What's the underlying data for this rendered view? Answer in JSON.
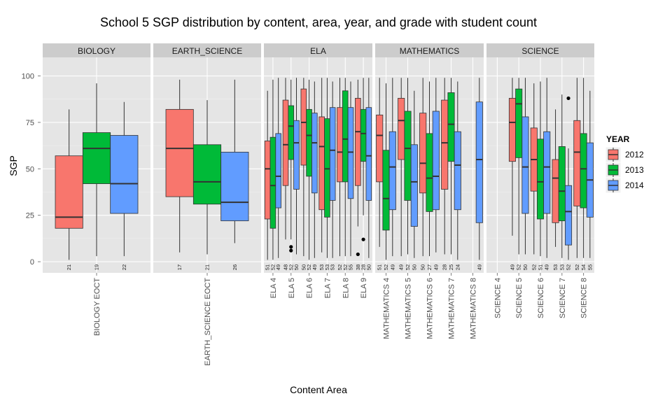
{
  "title": "School 5 SGP distribution by content, area, year, and grade with student count",
  "chart_data": {
    "type": "box",
    "title": "School 5 SGP distribution by content, area, year, and grade with student count",
    "xlabel": "Content Area",
    "ylabel": "SGP",
    "ylim": [
      -6,
      110
    ],
    "yticks": [
      0,
      25,
      50,
      75,
      100
    ],
    "grid": true,
    "legend": {
      "title": "YEAR",
      "position": "right",
      "entries": [
        {
          "label": "2012",
          "color": "#F8766D"
        },
        {
          "label": "2013",
          "color": "#00BA38"
        },
        {
          "label": "2014",
          "color": "#619CFF"
        }
      ]
    },
    "facets": [
      {
        "name": "BIOLOGY",
        "categories": [
          "BIOLOGY EOCT"
        ],
        "boxes": [
          {
            "cat": "BIOLOGY EOCT",
            "year": "2012",
            "min": 1,
            "q1": 18,
            "median": 24,
            "q3": 57,
            "max": 82,
            "n": "21",
            "outliers": []
          },
          {
            "cat": "BIOLOGY EOCT",
            "year": "2013",
            "min": 3,
            "q1": 42,
            "median": 61,
            "q3": 69.5,
            "max": 96,
            "n": "19",
            "outliers": []
          },
          {
            "cat": "BIOLOGY EOCT",
            "year": "2014",
            "min": 3,
            "q1": 26,
            "median": 42,
            "q3": 68,
            "max": 86,
            "n": "22",
            "outliers": []
          }
        ]
      },
      {
        "name": "EARTH_SCIENCE",
        "categories": [
          "EARTH_SCIENCE EOCT"
        ],
        "boxes": [
          {
            "cat": "EARTH_SCIENCE EOCT",
            "year": "2012",
            "min": 5,
            "q1": 35,
            "median": 61,
            "q3": 82,
            "max": 98,
            "n": "17",
            "outliers": []
          },
          {
            "cat": "EARTH_SCIENCE EOCT",
            "year": "2013",
            "min": 4,
            "q1": 31,
            "median": 43,
            "q3": 63,
            "max": 87,
            "n": "21",
            "outliers": []
          },
          {
            "cat": "EARTH_SCIENCE EOCT",
            "year": "2014",
            "min": 10,
            "q1": 22,
            "median": 32,
            "q3": 59,
            "max": 98,
            "n": "26",
            "outliers": []
          }
        ]
      },
      {
        "name": "ELA",
        "categories": [
          "ELA 4",
          "ELA 5",
          "ELA 6",
          "ELA 7",
          "ELA 8",
          "ELA 9"
        ],
        "boxes": [
          {
            "cat": "ELA 4",
            "year": "2012",
            "min": 1,
            "q1": 23,
            "median": 50,
            "q3": 65,
            "max": 92,
            "n": "51",
            "outliers": []
          },
          {
            "cat": "ELA 4",
            "year": "2013",
            "min": 1,
            "q1": 18,
            "median": 41,
            "q3": 67,
            "max": 98,
            "n": "52",
            "outliers": []
          },
          {
            "cat": "ELA 4",
            "year": "2014",
            "min": 2,
            "q1": 29,
            "median": 46,
            "q3": 69,
            "max": 99,
            "n": "49",
            "outliers": []
          },
          {
            "cat": "ELA 5",
            "year": "2012",
            "min": 12,
            "q1": 41,
            "median": 63,
            "q3": 87,
            "max": 99,
            "n": "48",
            "outliers": []
          },
          {
            "cat": "ELA 5",
            "year": "2013",
            "min": 12,
            "q1": 55,
            "median": 73,
            "q3": 84,
            "max": 98,
            "n": "52",
            "outliers": [
              6,
              8
            ]
          },
          {
            "cat": "ELA 5",
            "year": "2014",
            "min": 4,
            "q1": 39,
            "median": 64,
            "q3": 76,
            "max": 99,
            "n": "50",
            "outliers": []
          },
          {
            "cat": "ELA 6",
            "year": "2012",
            "min": 3,
            "q1": 52,
            "median": 75,
            "q3": 93,
            "max": 99,
            "n": "50",
            "outliers": []
          },
          {
            "cat": "ELA 6",
            "year": "2013",
            "min": 1,
            "q1": 46,
            "median": 68,
            "q3": 82,
            "max": 98,
            "n": "52",
            "outliers": []
          },
          {
            "cat": "ELA 6",
            "year": "2014",
            "min": 2,
            "q1": 37,
            "median": 64,
            "q3": 80,
            "max": 97,
            "n": "49",
            "outliers": []
          },
          {
            "cat": "ELA 7",
            "year": "2012",
            "min": 5,
            "q1": 28,
            "median": 62,
            "q3": 78,
            "max": 99,
            "n": "53",
            "outliers": []
          },
          {
            "cat": "ELA 7",
            "year": "2013",
            "min": 2,
            "q1": 24,
            "median": 50,
            "q3": 77,
            "max": 99,
            "n": "53",
            "outliers": []
          },
          {
            "cat": "ELA 7",
            "year": "2014",
            "min": 2,
            "q1": 33,
            "median": 60,
            "q3": 83,
            "max": 97,
            "n": "53",
            "outliers": []
          },
          {
            "cat": "ELA 8",
            "year": "2012",
            "min": 3,
            "q1": 43,
            "median": 59,
            "q3": 83,
            "max": 99,
            "n": "52",
            "outliers": []
          },
          {
            "cat": "ELA 8",
            "year": "2013",
            "min": 3,
            "q1": 43,
            "median": 66,
            "q3": 92,
            "max": 99,
            "n": "52",
            "outliers": []
          },
          {
            "cat": "ELA 8",
            "year": "2014",
            "min": 3,
            "q1": 34,
            "median": 59,
            "q3": 83,
            "max": 97,
            "n": "55",
            "outliers": []
          },
          {
            "cat": "ELA 9",
            "year": "2012",
            "min": 19,
            "q1": 41,
            "median": 70,
            "q3": 88,
            "max": 98,
            "n": "38",
            "outliers": [
              4
            ]
          },
          {
            "cat": "ELA 9",
            "year": "2013",
            "min": 25,
            "q1": 54,
            "median": 69,
            "q3": 82,
            "max": 99,
            "n": "28",
            "outliers": [
              12
            ]
          },
          {
            "cat": "ELA 9",
            "year": "2014",
            "min": 2,
            "q1": 33,
            "median": 57,
            "q3": 83,
            "max": 99,
            "n": "50",
            "outliers": []
          }
        ]
      },
      {
        "name": "MATHEMATICS",
        "categories": [
          "MATHEMATICS 4",
          "MATHEMATICS 5",
          "MATHEMATICS 6",
          "MATHEMATICS 7",
          "MATHEMATICS 8"
        ],
        "boxes": [
          {
            "cat": "MATHEMATICS 4",
            "year": "2012",
            "min": 8,
            "q1": 43,
            "median": 68,
            "q3": 79,
            "max": 99,
            "n": "51",
            "outliers": []
          },
          {
            "cat": "MATHEMATICS 4",
            "year": "2013",
            "min": 1,
            "q1": 17,
            "median": 34,
            "q3": 60,
            "max": 96,
            "n": "52",
            "outliers": []
          },
          {
            "cat": "MATHEMATICS 4",
            "year": "2014",
            "min": 3,
            "q1": 28,
            "median": 51,
            "q3": 70,
            "max": 99,
            "n": "49",
            "outliers": []
          },
          {
            "cat": "MATHEMATICS 5",
            "year": "2012",
            "min": 3,
            "q1": 55,
            "median": 76,
            "q3": 88,
            "max": 99,
            "n": "49",
            "outliers": []
          },
          {
            "cat": "MATHEMATICS 5",
            "year": "2013",
            "min": 4,
            "q1": 33,
            "median": 61,
            "q3": 81,
            "max": 99,
            "n": "52",
            "outliers": []
          },
          {
            "cat": "MATHEMATICS 5",
            "year": "2014",
            "min": 2,
            "q1": 19,
            "median": 43,
            "q3": 63,
            "max": 92,
            "n": "50",
            "outliers": []
          },
          {
            "cat": "MATHEMATICS 6",
            "year": "2012",
            "min": 3,
            "q1": 37,
            "median": 53,
            "q3": 80,
            "max": 99,
            "n": "50",
            "outliers": []
          },
          {
            "cat": "MATHEMATICS 6",
            "year": "2013",
            "min": 3,
            "q1": 27,
            "median": 45,
            "q3": 69,
            "max": 97,
            "n": "27",
            "outliers": []
          },
          {
            "cat": "MATHEMATICS 6",
            "year": "2014",
            "min": 5,
            "q1": 28,
            "median": 46,
            "q3": 81,
            "max": 99,
            "n": "49",
            "outliers": []
          },
          {
            "cat": "MATHEMATICS 7",
            "year": "2012",
            "min": 4,
            "q1": 39,
            "median": 64,
            "q3": 87,
            "max": 99,
            "n": "28",
            "outliers": []
          },
          {
            "cat": "MATHEMATICS 7",
            "year": "2013",
            "min": 4,
            "q1": 54,
            "median": 74,
            "q3": 91,
            "max": 99,
            "n": "25",
            "outliers": []
          },
          {
            "cat": "MATHEMATICS 7",
            "year": "2014",
            "min": 1,
            "q1": 28,
            "median": 52,
            "q3": 70,
            "max": 97,
            "n": "24",
            "outliers": []
          },
          {
            "cat": "MATHEMATICS 8",
            "year": "2014",
            "min": 1,
            "q1": 21,
            "median": 55,
            "q3": 86,
            "max": 99,
            "n": "49",
            "outliers": []
          }
        ]
      },
      {
        "name": "SCIENCE",
        "categories": [
          "SCIENCE 4",
          "SCIENCE 5",
          "SCIENCE 6",
          "SCIENCE 7",
          "SCIENCE 8"
        ],
        "boxes": [
          {
            "cat": "SCIENCE 5",
            "year": "2012",
            "min": 14,
            "q1": 54,
            "median": 75,
            "q3": 88,
            "max": 99,
            "n": "49",
            "outliers": []
          },
          {
            "cat": "SCIENCE 5",
            "year": "2013",
            "min": 4,
            "q1": 56,
            "median": 85,
            "q3": 93,
            "max": 99,
            "n": "52",
            "outliers": []
          },
          {
            "cat": "SCIENCE 5",
            "year": "2014",
            "min": 4,
            "q1": 26,
            "median": 51,
            "q3": 78,
            "max": 99,
            "n": "50",
            "outliers": []
          },
          {
            "cat": "SCIENCE 6",
            "year": "2012",
            "min": 4,
            "q1": 38,
            "median": 55,
            "q3": 72,
            "max": 96,
            "n": "52",
            "outliers": []
          },
          {
            "cat": "SCIENCE 6",
            "year": "2013",
            "min": 3,
            "q1": 23,
            "median": 43,
            "q3": 66,
            "max": 97,
            "n": "51",
            "outliers": []
          },
          {
            "cat": "SCIENCE 6",
            "year": "2014",
            "min": 2,
            "q1": 26,
            "median": 51,
            "q3": 70,
            "max": 99,
            "n": "49",
            "outliers": []
          },
          {
            "cat": "SCIENCE 7",
            "year": "2012",
            "min": 8,
            "q1": 21,
            "median": 45,
            "q3": 55,
            "max": 82,
            "n": "53",
            "outliers": []
          },
          {
            "cat": "SCIENCE 7",
            "year": "2013",
            "min": 2,
            "q1": 22,
            "median": 38,
            "q3": 62,
            "max": 90,
            "n": "53",
            "outliers": []
          },
          {
            "cat": "SCIENCE 7",
            "year": "2014",
            "min": 1,
            "q1": 9,
            "median": 27,
            "q3": 41,
            "max": 61,
            "n": "52",
            "outliers": [
              88
            ]
          },
          {
            "cat": "SCIENCE 8",
            "year": "2012",
            "min": 2,
            "q1": 30,
            "median": 59,
            "q3": 76,
            "max": 99,
            "n": "52",
            "outliers": []
          },
          {
            "cat": "SCIENCE 8",
            "year": "2013",
            "min": 2,
            "q1": 29,
            "median": 50,
            "q3": 69,
            "max": 99,
            "n": "54",
            "outliers": []
          },
          {
            "cat": "SCIENCE 8",
            "year": "2014",
            "min": 2,
            "q1": 24,
            "median": 44,
            "q3": 64,
            "max": 92,
            "n": "55",
            "outliers": []
          }
        ]
      }
    ]
  }
}
